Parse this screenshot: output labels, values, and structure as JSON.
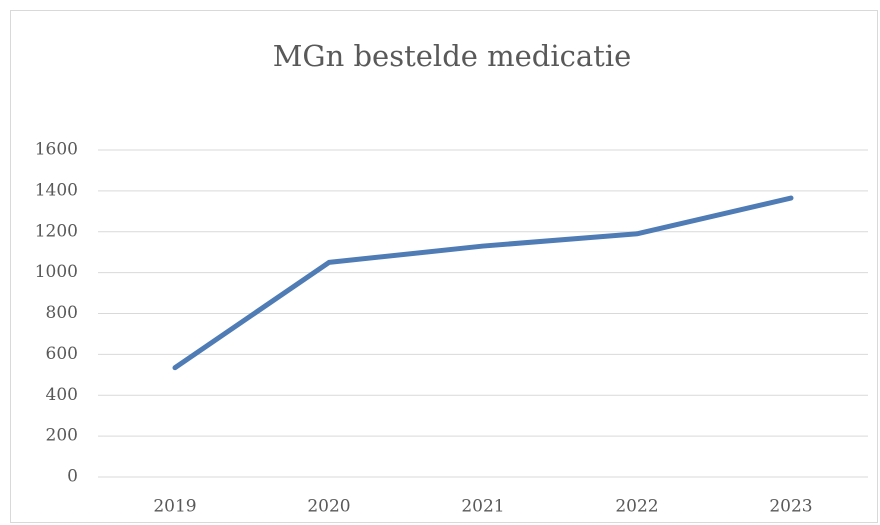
{
  "chart_data": {
    "type": "line",
    "title": "MGn bestelde medicatie",
    "categories": [
      "2019",
      "2020",
      "2021",
      "2022",
      "2023"
    ],
    "values": [
      535,
      1050,
      1130,
      1190,
      1365
    ],
    "color": "#4f7cb5",
    "ylim": [
      0,
      1600
    ],
    "yticks": [
      0,
      200,
      400,
      600,
      800,
      1000,
      1200,
      1400,
      1600
    ],
    "grid": true
  }
}
